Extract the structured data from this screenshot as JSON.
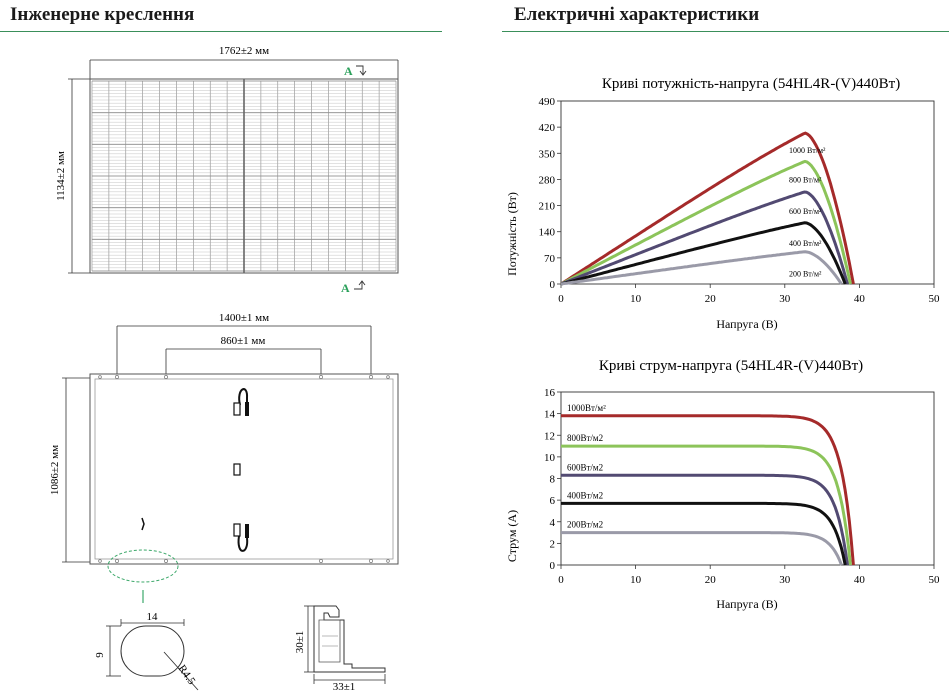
{
  "left_section": {
    "title": "Інженерне креслення"
  },
  "right_section": {
    "title": "Електричні характеристики"
  },
  "front_view": {
    "width_label": "1762±2 мм",
    "height_label": "1134±2 мм",
    "section_marker": "A"
  },
  "back_view": {
    "mount_outer_label": "1400±1 мм",
    "mount_inner_label": "860±1 мм",
    "height_label": "1086±2 мм"
  },
  "hole_detail": {
    "width_label": "14",
    "height_label": "9",
    "radius_label": "R4.5"
  },
  "frame_profile": {
    "height_label": "30±1",
    "width_label": "33±1"
  },
  "colors": {
    "accent_green": "#3a8f5a",
    "marker_green": "#2aa05a"
  },
  "chart_data": [
    {
      "type": "line",
      "title": "Криві потужність-напруга (54HL4R-(V)440Вт)",
      "xlabel": "Напруга (В)",
      "ylabel": "Потужність (Вт)",
      "xlim": [
        0,
        50
      ],
      "ylim": [
        0,
        490
      ],
      "xticks": [
        0,
        10,
        20,
        30,
        40,
        50
      ],
      "yticks": [
        0,
        70,
        140,
        210,
        280,
        350,
        420,
        490
      ],
      "grid": false,
      "series": [
        {
          "name": "1000 Вт/м²",
          "color": "#a52a2a",
          "voc": 39.2,
          "vmp": 32.7,
          "peak": 421,
          "x": [
            0,
            10,
            20,
            30,
            32.7,
            36,
            39.2
          ],
          "y": [
            0,
            128,
            257,
            386,
            421,
            320,
            0
          ]
        },
        {
          "name": "800 Вт/м²",
          "color": "#8cc45a",
          "voc": 38.8,
          "vmp": 32.7,
          "peak": 342,
          "x": [
            0,
            10,
            20,
            30,
            32.7,
            36,
            38.8
          ],
          "y": [
            0,
            105,
            209,
            314,
            342,
            255,
            0
          ]
        },
        {
          "name": "600 Вт/м²",
          "color": "#524a72",
          "voc": 38.4,
          "vmp": 32.7,
          "peak": 257,
          "x": [
            0,
            10,
            20,
            30,
            32.7,
            36,
            38.4
          ],
          "y": [
            0,
            79,
            157,
            236,
            257,
            185,
            0
          ]
        },
        {
          "name": "400 Вт/м²",
          "color": "#111111",
          "voc": 38.1,
          "vmp": 32.7,
          "peak": 171,
          "x": [
            0,
            10,
            20,
            30,
            32.7,
            36,
            38.1
          ],
          "y": [
            0,
            52,
            105,
            157,
            171,
            118,
            0
          ]
        },
        {
          "name": "200 Вт/м²",
          "color": "#9a9aa8",
          "voc": 37.6,
          "vmp": 32.7,
          "peak": 90,
          "x": [
            0,
            10,
            20,
            30,
            32.7,
            35.5,
            37.6
          ],
          "y": [
            0,
            27,
            55,
            83,
            90,
            60,
            0
          ]
        }
      ]
    },
    {
      "type": "line",
      "title": "Криві струм-напруга (54HL4R-(V)440Вт)",
      "xlabel": "Напруга (В)",
      "ylabel": "Струм (А)",
      "xlim": [
        0,
        50
      ],
      "ylim": [
        0,
        16
      ],
      "xticks": [
        0,
        10,
        20,
        30,
        40,
        50
      ],
      "yticks": [
        0,
        2,
        4,
        6,
        8,
        10,
        12,
        14,
        16
      ],
      "grid": false,
      "series": [
        {
          "name": "1000Вт/м²",
          "color": "#a52a2a",
          "isc": 13.8,
          "voc": 39.2,
          "x": [
            0,
            10,
            20,
            30,
            33,
            36,
            39.2
          ],
          "y": [
            13.8,
            13.8,
            13.8,
            13.7,
            12.6,
            8.5,
            0
          ]
        },
        {
          "name": "800Вт/м2",
          "color": "#8cc45a",
          "isc": 11.0,
          "voc": 38.8,
          "x": [
            0,
            10,
            20,
            30,
            33,
            36,
            38.8
          ],
          "y": [
            11.0,
            11.0,
            11.0,
            10.9,
            10.0,
            6.8,
            0
          ]
        },
        {
          "name": "600Вт/м2",
          "color": "#524a72",
          "isc": 8.3,
          "voc": 38.4,
          "x": [
            0,
            10,
            20,
            30,
            33,
            36,
            38.4
          ],
          "y": [
            8.3,
            8.3,
            8.3,
            8.2,
            7.5,
            5.0,
            0
          ]
        },
        {
          "name": "400Вт/м2",
          "color": "#111111",
          "isc": 5.7,
          "voc": 38.1,
          "x": [
            0,
            10,
            20,
            30,
            33,
            36,
            38.1
          ],
          "y": [
            5.7,
            5.7,
            5.7,
            5.6,
            5.1,
            3.3,
            0
          ]
        },
        {
          "name": "200Вт/м2",
          "color": "#9a9aa8",
          "isc": 3.0,
          "voc": 37.6,
          "x": [
            0,
            10,
            20,
            30,
            33,
            35.5,
            37.6
          ],
          "y": [
            3.0,
            3.0,
            3.0,
            2.9,
            2.6,
            1.7,
            0
          ]
        }
      ]
    }
  ]
}
